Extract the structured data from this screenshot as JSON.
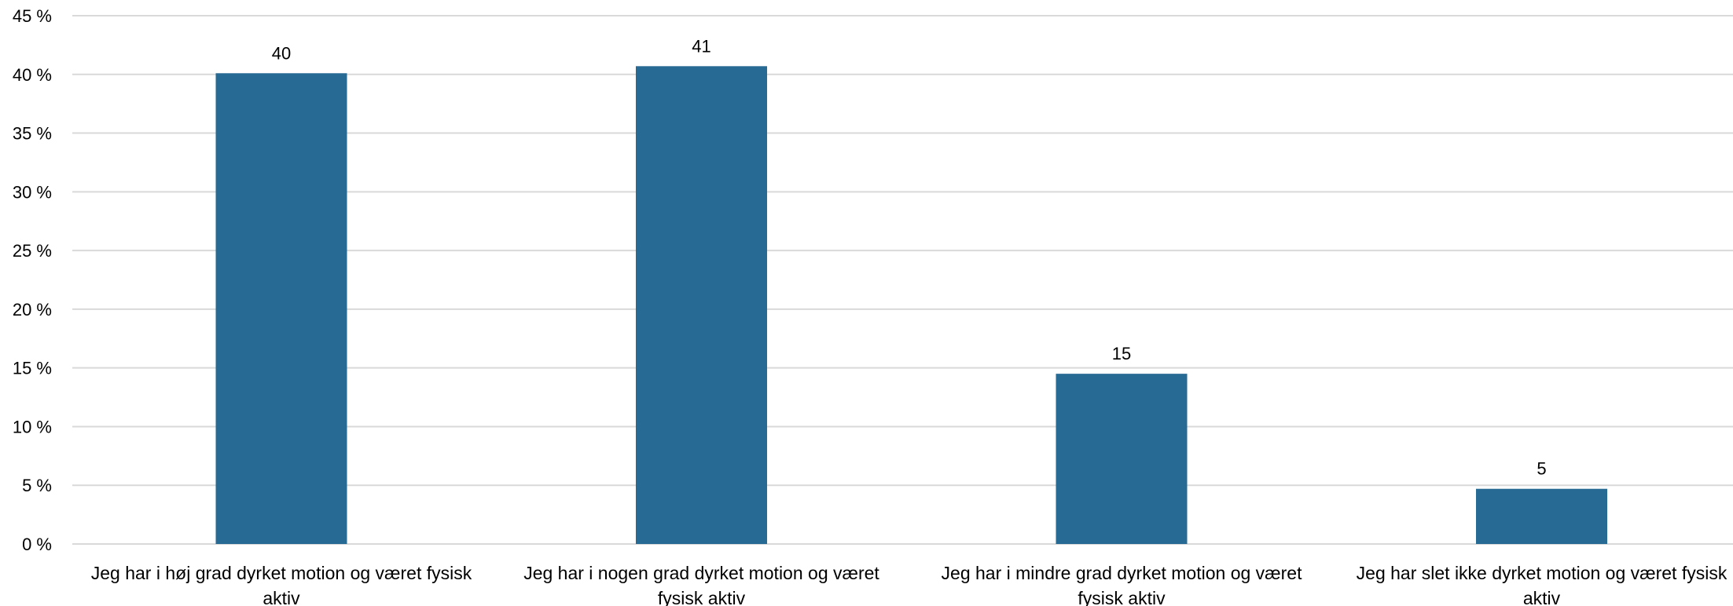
{
  "chart_data": {
    "type": "bar",
    "title": "",
    "xlabel": "",
    "ylabel": "",
    "ylim": [
      0,
      45
    ],
    "yticks": [
      0,
      5,
      10,
      15,
      20,
      25,
      30,
      35,
      40,
      45
    ],
    "ytick_labels": [
      "0 %",
      "5 %",
      "10 %",
      "15 %",
      "20 %",
      "25 %",
      "30 %",
      "35 %",
      "40 %",
      "45 %"
    ],
    "grid": true,
    "categories": [
      [
        "Jeg har i høj grad dyrket motion og været fysisk",
        "aktiv"
      ],
      [
        "Jeg har i nogen grad dyrket motion og været",
        "fysisk aktiv"
      ],
      [
        "Jeg har i mindre grad dyrket motion og været",
        "fysisk aktiv"
      ],
      [
        "Jeg har slet ikke dyrket motion og været fysisk",
        "aktiv"
      ]
    ],
    "values": [
      40.1,
      40.7,
      14.5,
      4.7
    ],
    "data_labels": [
      "40",
      "41",
      "15",
      "5"
    ],
    "bar_color": "#276a94"
  }
}
